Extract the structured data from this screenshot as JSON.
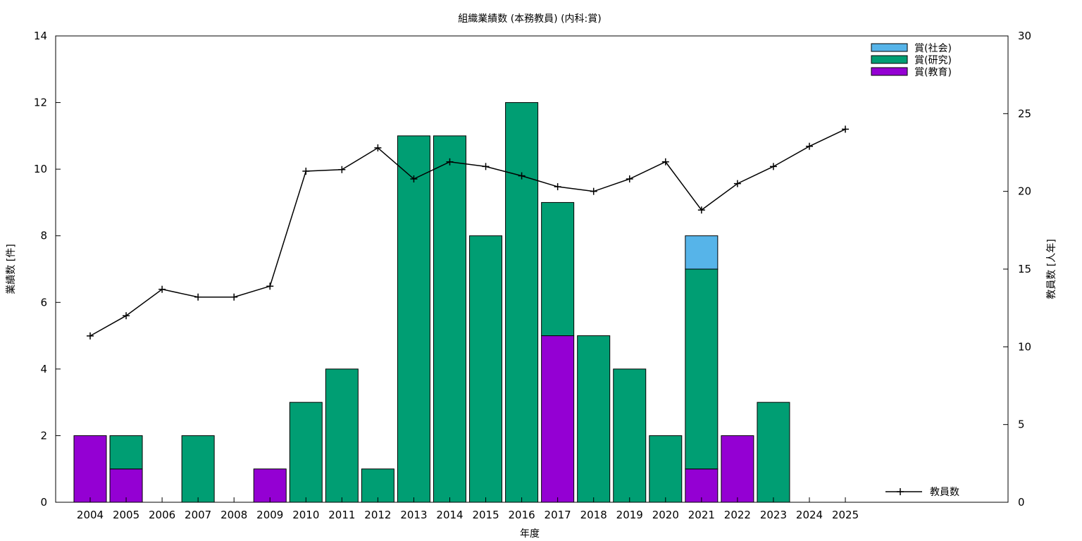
{
  "chart_data": {
    "type": "bar",
    "title": "組織業績数 (本務教員) (内科:賞)",
    "xlabel": "年度",
    "ylabel": "業績数 [件]",
    "y2label": "教員数 [人年]",
    "ylim": [
      0,
      14
    ],
    "y2lim": [
      0,
      30
    ],
    "yticks": [
      0,
      2,
      4,
      6,
      8,
      10,
      12,
      14
    ],
    "y2ticks": [
      0,
      5,
      10,
      15,
      20,
      25,
      30
    ],
    "stacked": true,
    "legend_position": "top-right",
    "categories": [
      "2004",
      "2005",
      "2006",
      "2007",
      "2008",
      "2009",
      "2010",
      "2011",
      "2012",
      "2013",
      "2014",
      "2015",
      "2016",
      "2017",
      "2018",
      "2019",
      "2020",
      "2021",
      "2022",
      "2023",
      "2024",
      "2025"
    ],
    "series": [
      {
        "name": "賞(教育)",
        "color": "#9400d3",
        "values": [
          2,
          1,
          0,
          0,
          0,
          1,
          0,
          0,
          0,
          0,
          0,
          0,
          0,
          5,
          0,
          0,
          0,
          1,
          2,
          0,
          0,
          0
        ]
      },
      {
        "name": "賞(研究)",
        "color": "#009e73",
        "values": [
          0,
          1,
          0,
          2,
          0,
          0,
          3,
          4,
          1,
          11,
          11,
          8,
          12,
          4,
          5,
          4,
          2,
          6,
          0,
          3,
          0,
          0
        ]
      },
      {
        "name": "賞(社会)",
        "color": "#56b4e9",
        "values": [
          0,
          0,
          0,
          0,
          0,
          0,
          0,
          0,
          0,
          0,
          0,
          0,
          0,
          0,
          0,
          0,
          0,
          1,
          0,
          0,
          0,
          0
        ]
      }
    ],
    "line_series": {
      "name": "教員数",
      "axis": "right",
      "color": "#000000",
      "values": [
        10.7,
        12.0,
        13.7,
        13.2,
        13.2,
        13.9,
        21.3,
        21.4,
        22.8,
        20.8,
        21.9,
        21.6,
        21.0,
        20.3,
        20.0,
        20.8,
        21.9,
        18.8,
        20.5,
        21.6,
        22.9,
        24.0
      ]
    }
  }
}
